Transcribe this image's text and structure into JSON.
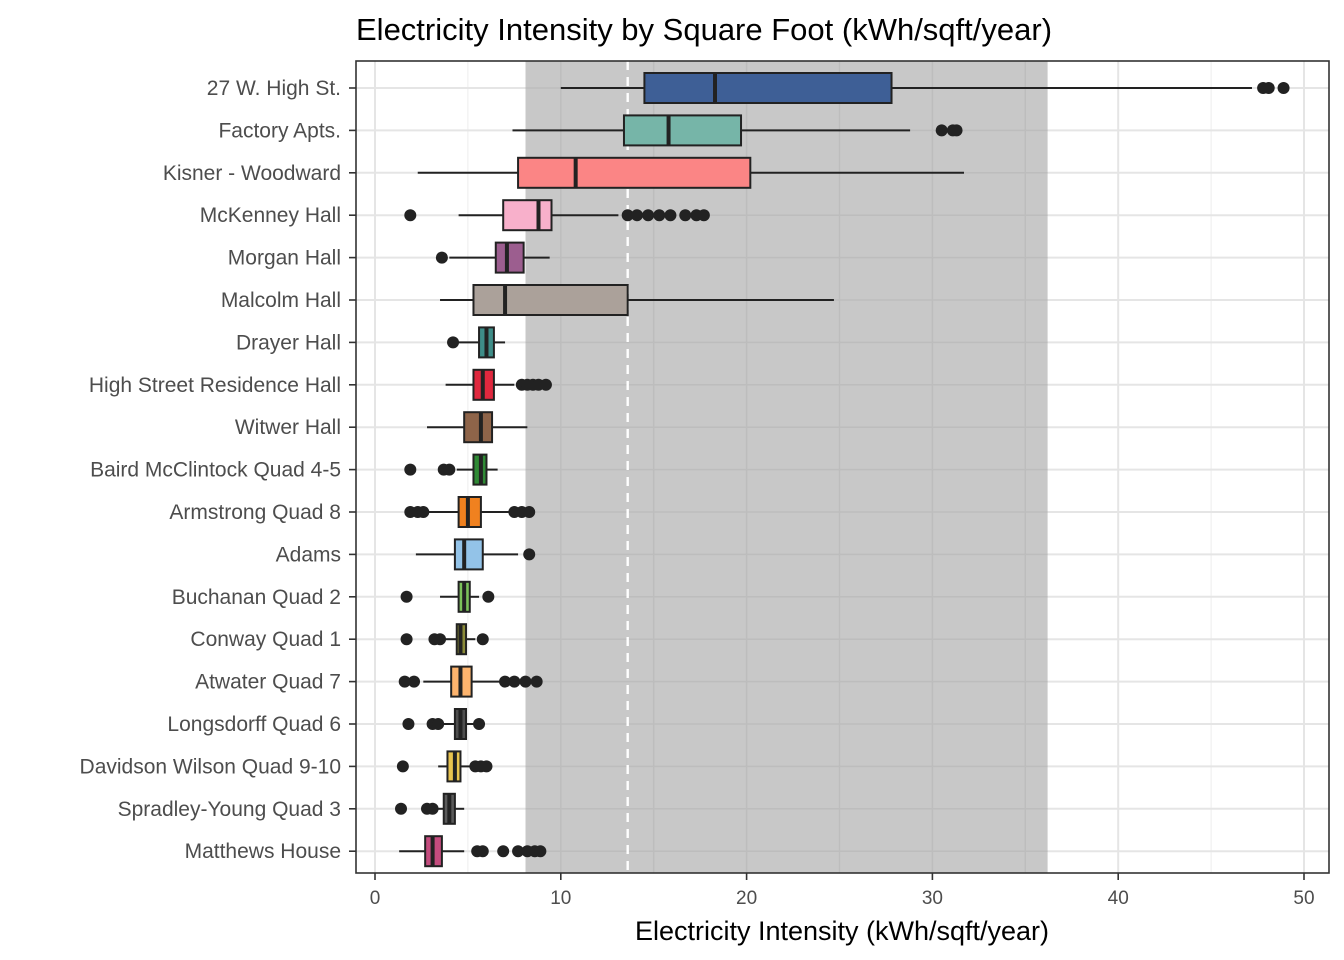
{
  "chart_data": {
    "type": "boxplot",
    "title": "Electricity Intensity by Square Foot (kWh/sqft/year)",
    "xlabel": "Electricity Intensity (kWh/sqft/year)",
    "ylabel": "",
    "xlim": [
      -1,
      51.2
    ],
    "xticks": [
      0,
      10,
      20,
      30,
      40,
      50
    ],
    "xtick_labels": [
      "0",
      "10",
      "20",
      "30",
      "40",
      "50"
    ],
    "grid": true,
    "shaded_band": {
      "from": 8.1,
      "to": 36.2,
      "color": "#c8c8c8"
    },
    "reference_line": {
      "value": 13.6,
      "style": "dashed",
      "color": "#ffffff"
    },
    "series": [
      {
        "name": "27 W. High St.",
        "color": "#3e5f96",
        "min": 10.0,
        "q1": 14.5,
        "median": 18.3,
        "q3": 27.8,
        "max": 47.2,
        "outliers": [
          47.8,
          48.1,
          48.9
        ]
      },
      {
        "name": "Factory Apts.",
        "color": "#76b5a8",
        "min": 7.4,
        "q1": 13.4,
        "median": 15.8,
        "q3": 19.7,
        "max": 28.8,
        "outliers": [
          30.5,
          31.1,
          31.3
        ]
      },
      {
        "name": "Kisner - Woodward",
        "color": "#fb8585",
        "min": 2.3,
        "q1": 7.7,
        "median": 10.8,
        "q3": 20.2,
        "max": 31.7,
        "outliers": []
      },
      {
        "name": "McKenney Hall",
        "color": "#f8b0cb",
        "min": 4.5,
        "q1": 6.9,
        "median": 8.8,
        "q3": 9.5,
        "max": 13.1,
        "outliers": [
          1.9,
          13.6,
          14.1,
          14.7,
          15.3,
          15.9,
          16.7,
          17.3,
          17.7
        ]
      },
      {
        "name": "Morgan Hall",
        "color": "#9c5e8f",
        "min": 4.0,
        "q1": 6.5,
        "median": 7.1,
        "q3": 8.0,
        "max": 9.4,
        "outliers": [
          3.6
        ]
      },
      {
        "name": "Malcolm Hall",
        "color": "#aba19a",
        "min": 3.5,
        "q1": 5.3,
        "median": 7.0,
        "q3": 13.6,
        "max": 24.7,
        "outliers": []
      },
      {
        "name": "Drayer Hall",
        "color": "#3e8d88",
        "min": 4.4,
        "q1": 5.6,
        "median": 6.0,
        "q3": 6.4,
        "max": 7.0,
        "outliers": [
          4.2
        ]
      },
      {
        "name": "High Street Residence Hall",
        "color": "#e0283e",
        "min": 3.8,
        "q1": 5.3,
        "median": 5.8,
        "q3": 6.4,
        "max": 7.5,
        "outliers": [
          7.9,
          8.2,
          8.5,
          8.8,
          9.2
        ]
      },
      {
        "name": "Witwer Hall",
        "color": "#8e6449",
        "min": 2.8,
        "q1": 4.8,
        "median": 5.7,
        "q3": 6.3,
        "max": 8.2,
        "outliers": []
      },
      {
        "name": "Baird McClintock Quad 4-5",
        "color": "#2f8a35",
        "min": 4.4,
        "q1": 5.3,
        "median": 5.7,
        "q3": 6.0,
        "max": 6.6,
        "outliers": [
          1.9,
          3.7,
          4.0
        ]
      },
      {
        "name": "Armstrong Quad 8",
        "color": "#f0811f",
        "min": 2.8,
        "q1": 4.5,
        "median": 5.0,
        "q3": 5.7,
        "max": 7.2,
        "outliers": [
          1.9,
          2.3,
          2.6,
          7.5,
          7.9,
          8.3
        ]
      },
      {
        "name": "Adams",
        "color": "#93c3e8",
        "min": 2.2,
        "q1": 4.3,
        "median": 4.8,
        "q3": 5.8,
        "max": 7.7,
        "outliers": [
          8.3
        ]
      },
      {
        "name": "Buchanan Quad 2",
        "color": "#7cc25a",
        "min": 3.5,
        "q1": 4.5,
        "median": 4.8,
        "q3": 5.1,
        "max": 5.6,
        "outliers": [
          1.7,
          6.1
        ]
      },
      {
        "name": "Conway Quad 1",
        "color": "#8a8a38",
        "min": 3.7,
        "q1": 4.4,
        "median": 4.6,
        "q3": 4.9,
        "max": 5.4,
        "outliers": [
          1.7,
          3.2,
          3.5,
          5.8
        ]
      },
      {
        "name": "Atwater Quad 7",
        "color": "#fdb46e",
        "min": 2.6,
        "q1": 4.1,
        "median": 4.6,
        "q3": 5.2,
        "max": 6.7,
        "outliers": [
          1.6,
          2.1,
          7.0,
          7.5,
          8.1,
          8.7
        ]
      },
      {
        "name": "Longsdorff Quad 6",
        "color": "#4e4e4e",
        "min": 3.7,
        "q1": 4.3,
        "median": 4.6,
        "q3": 4.9,
        "max": 5.3,
        "outliers": [
          1.8,
          3.1,
          3.4,
          5.6
        ]
      },
      {
        "name": "Davidson Wilson Quad 9-10",
        "color": "#e8c34e",
        "min": 3.4,
        "q1": 3.9,
        "median": 4.3,
        "q3": 4.6,
        "max": 5.1,
        "outliers": [
          1.5,
          5.4,
          5.7,
          6.0
        ]
      },
      {
        "name": "Spradley-Young  Quad 3",
        "color": "#5a5a5a",
        "min": 3.3,
        "q1": 3.7,
        "median": 4.0,
        "q3": 4.3,
        "max": 4.8,
        "outliers": [
          1.4,
          2.8,
          3.1
        ]
      },
      {
        "name": "Matthews House",
        "color": "#c44c7e",
        "min": 1.3,
        "q1": 2.7,
        "median": 3.1,
        "q3": 3.6,
        "max": 4.8,
        "outliers": [
          5.5,
          5.8,
          6.9,
          7.7,
          8.2,
          8.6,
          8.9
        ]
      }
    ]
  }
}
